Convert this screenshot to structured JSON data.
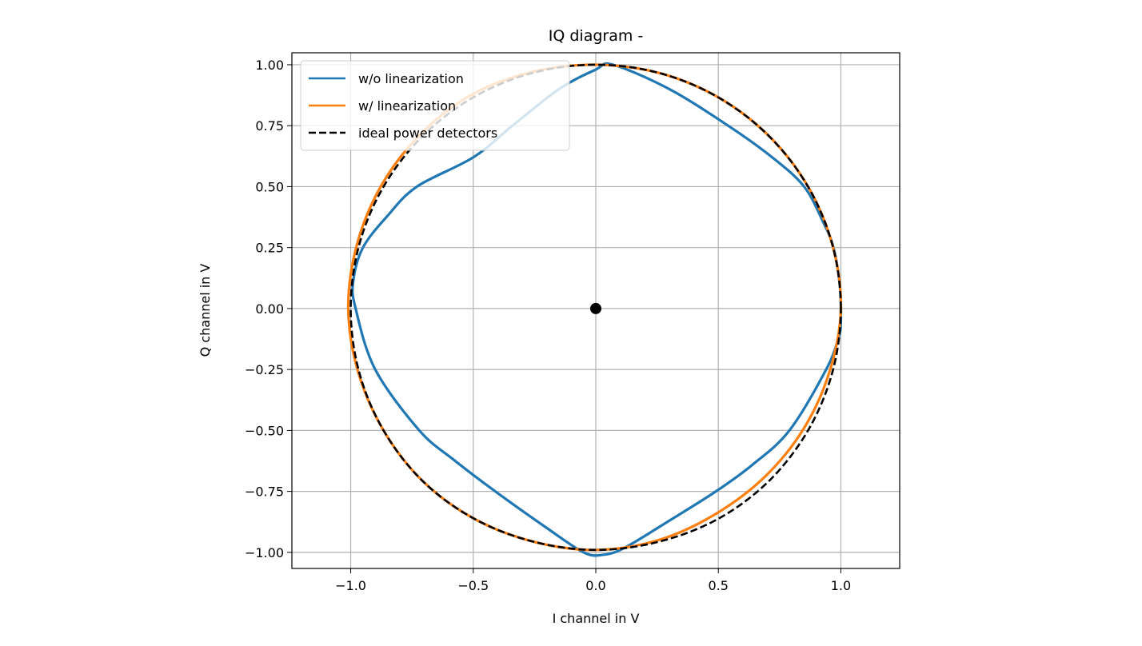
{
  "chart_data": {
    "type": "line",
    "title": "IQ diagram -",
    "xlabel": "I channel in V",
    "ylabel": "Q channel in V",
    "xlim": [
      -1.24,
      1.24
    ],
    "ylim": [
      -1.066,
      1.049
    ],
    "xticks": [
      -1.0,
      -0.5,
      0.0,
      0.5,
      1.0
    ],
    "xtick_labels": [
      "−1.0",
      "−0.5",
      "0.0",
      "0.5",
      "1.0"
    ],
    "yticks": [
      1.0,
      0.75,
      0.5,
      0.25,
      0.0,
      -0.25,
      -0.5,
      -0.75,
      -1.0
    ],
    "ytick_labels": [
      "1.00",
      "0.75",
      "0.50",
      "0.25",
      "0.00",
      "−0.25",
      "−0.50",
      "−0.75",
      "−1.00"
    ],
    "grid": true,
    "legend_placement": "upper-left",
    "series": [
      {
        "name": "w/o linearization",
        "color": "#1f77b4",
        "style": "solid",
        "points": [
          [
            0.07,
            1.0
          ],
          [
            0.3,
            0.9
          ],
          [
            0.54,
            0.75
          ],
          [
            0.72,
            0.62
          ],
          [
            0.85,
            0.5
          ],
          [
            0.93,
            0.35
          ],
          [
            0.97,
            0.25
          ],
          [
            0.995,
            0.1
          ],
          [
            1.0,
            -0.05
          ],
          [
            0.99,
            -0.12
          ],
          [
            0.94,
            -0.25
          ],
          [
            0.79,
            -0.5
          ],
          [
            0.64,
            -0.64
          ],
          [
            0.49,
            -0.75
          ],
          [
            0.3,
            -0.87
          ],
          [
            0.12,
            -0.98
          ],
          [
            0.03,
            -1.01
          ],
          [
            -0.05,
            -1.0
          ],
          [
            -0.2,
            -0.9
          ],
          [
            -0.41,
            -0.75
          ],
          [
            -0.58,
            -0.62
          ],
          [
            -0.72,
            -0.5
          ],
          [
            -0.9,
            -0.25
          ],
          [
            -0.98,
            0.0
          ],
          [
            -0.99,
            0.11
          ],
          [
            -0.95,
            0.25
          ],
          [
            -0.85,
            0.38
          ],
          [
            -0.73,
            0.5
          ],
          [
            -0.5,
            0.62
          ],
          [
            -0.34,
            0.75
          ],
          [
            -0.15,
            0.9
          ],
          [
            0.0,
            0.98
          ]
        ]
      },
      {
        "name": "w/ linearization",
        "color": "#ff7f0e",
        "style": "solid",
        "points": [
          [
            1.0,
            0.0
          ],
          [
            0.966,
            0.259
          ],
          [
            0.866,
            0.5
          ],
          [
            0.707,
            0.707
          ],
          [
            0.5,
            0.866
          ],
          [
            0.259,
            0.966
          ],
          [
            0.0,
            1.0
          ],
          [
            -0.262,
            0.97
          ],
          [
            -0.51,
            0.875
          ],
          [
            -0.715,
            0.715
          ],
          [
            -0.875,
            0.505
          ],
          [
            -0.975,
            0.261
          ],
          [
            -1.01,
            0.0
          ],
          [
            -0.97,
            -0.259
          ],
          [
            -0.866,
            -0.5
          ],
          [
            -0.707,
            -0.707
          ],
          [
            -0.5,
            -0.86
          ],
          [
            -0.259,
            -0.955
          ],
          [
            0.0,
            -0.99
          ],
          [
            0.255,
            -0.95
          ],
          [
            0.485,
            -0.845
          ],
          [
            0.69,
            -0.69
          ],
          [
            0.85,
            -0.49
          ],
          [
            0.955,
            -0.255
          ]
        ]
      },
      {
        "name": "ideal power detectors",
        "color": "#000000",
        "style": "dashed",
        "points": [
          [
            1.0,
            0.0
          ],
          [
            0.966,
            0.259
          ],
          [
            0.866,
            0.5
          ],
          [
            0.707,
            0.707
          ],
          [
            0.5,
            0.866
          ],
          [
            0.259,
            0.966
          ],
          [
            0.0,
            1.0
          ],
          [
            -0.259,
            0.966
          ],
          [
            -0.5,
            0.866
          ],
          [
            -0.707,
            0.707
          ],
          [
            -0.866,
            0.5
          ],
          [
            -0.966,
            0.259
          ],
          [
            -1.0,
            0.0
          ],
          [
            -0.966,
            -0.259
          ],
          [
            -0.866,
            -0.5
          ],
          [
            -0.707,
            -0.707
          ],
          [
            -0.5,
            -0.86
          ],
          [
            -0.259,
            -0.955
          ],
          [
            0.0,
            -0.99
          ],
          [
            0.259,
            -0.956
          ],
          [
            0.5,
            -0.862
          ],
          [
            0.707,
            -0.707
          ],
          [
            0.866,
            -0.5
          ],
          [
            0.966,
            -0.259
          ]
        ]
      }
    ],
    "markers": [
      {
        "x": 0.0,
        "y": 0.0,
        "color": "#000000"
      }
    ]
  }
}
